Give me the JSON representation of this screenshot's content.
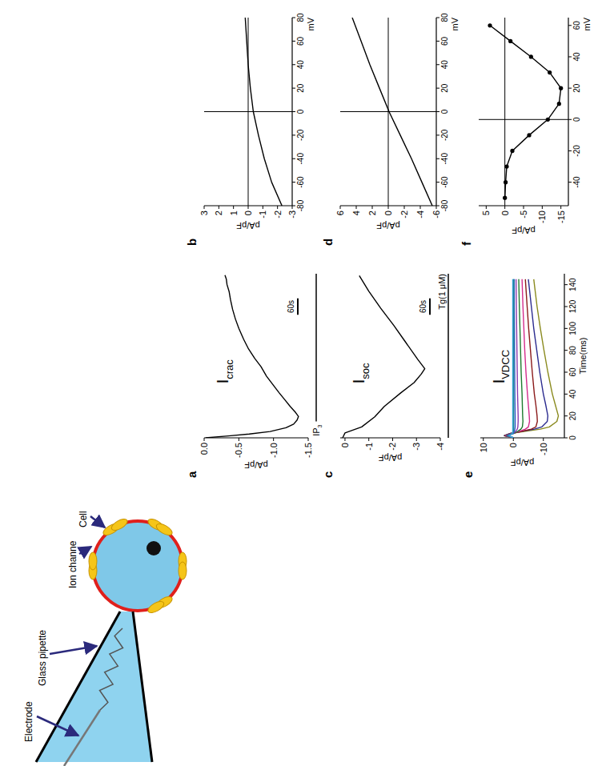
{
  "schematic": {
    "labels": [
      "Electrode",
      "Glass pipette",
      "Ion channe",
      "Cell"
    ]
  },
  "chart_data": [
    {
      "type": "line",
      "panel": "a",
      "title": {
        "main": "I",
        "sub": "crac"
      },
      "y_label": "pA/pF",
      "x": [
        0,
        7,
        14,
        23,
        37,
        50,
        65,
        78,
        92,
        115,
        140,
        165,
        195,
        225,
        260,
        290,
        325,
        360,
        400,
        435,
        470,
        505,
        535,
        560,
        580,
        595
      ],
      "values": [
        -0.02,
        -0.35,
        -0.65,
        -0.95,
        -1.18,
        -1.29,
        -1.34,
        -1.36,
        -1.32,
        -1.24,
        -1.16,
        -1.08,
        -0.99,
        -0.9,
        -0.82,
        -0.73,
        -0.64,
        -0.57,
        -0.5,
        -0.45,
        -0.41,
        -0.38,
        -0.36,
        -0.33,
        -0.32,
        -0.3
      ],
      "color": "#000000",
      "xlim": [
        0,
        600
      ],
      "ylim": [
        -1.5,
        0
      ],
      "yticks": [
        {
          "value": 0,
          "label": "0.0"
        },
        -0.5,
        {
          "value": -1,
          "label": "-1.0"
        },
        -1.5
      ],
      "tick_labels": "y",
      "stimulus": {
        "label": {
          "main": "IP",
          "sub": "3"
        },
        "start": 60,
        "end": 600
      },
      "scale_bar": {
        "value": 60,
        "label": "60s"
      }
    },
    {
      "type": "line",
      "panel": "b",
      "y_label": "pA/pF",
      "x_label": "mV",
      "x": [
        -80,
        -60,
        -40,
        -20,
        0,
        20,
        40,
        60,
        80
      ],
      "values": [
        -2.3,
        -1.6,
        -1.1,
        -0.7,
        -0.35,
        -0.15,
        0,
        0.1,
        0.2
      ],
      "color": "#000000",
      "xlim": [
        -80,
        80
      ],
      "ylim": [
        -3,
        3
      ],
      "xticks": [
        -80,
        -60,
        -40,
        -20,
        0,
        20,
        40,
        60,
        80
      ],
      "yticks": [
        -3,
        -2,
        -1,
        0,
        1,
        2,
        3
      ]
    },
    {
      "type": "line",
      "panel": "c",
      "title": {
        "main": "I",
        "sub": "soc"
      },
      "y_label": "pA/pF",
      "x": [
        0,
        9,
        18,
        40,
        77,
        115,
        165,
        202,
        233,
        253,
        287,
        349,
        411,
        474,
        536,
        593
      ],
      "values": [
        0.1,
        0.05,
        0,
        -0.7,
        -1.25,
        -1.65,
        -2.35,
        -2.9,
        -3.2,
        -3.35,
        -3.05,
        -2.55,
        -2.05,
        -1.5,
        -1,
        -0.6
      ],
      "color": "#000000",
      "xlim": [
        0,
        600
      ],
      "ylim": [
        -4,
        0.2
      ],
      "yticks": [
        0,
        -1,
        -2,
        -3,
        -4
      ],
      "tick_labels": "y",
      "stimulus": {
        "label": {
          "main": "Tg(1 μM)"
        },
        "start": 0,
        "end": 600
      },
      "scale_bar": {
        "value": 60,
        "label": "60s"
      }
    },
    {
      "type": "line",
      "panel": "d",
      "y_label": "pA/pF",
      "x_label": "mV",
      "x": [
        -80,
        -60,
        -40,
        -20,
        0,
        20,
        40,
        60,
        80
      ],
      "values": [
        -5.5,
        -4.2,
        -2.9,
        -1.5,
        -0.1,
        1.1,
        2.3,
        3.4,
        4.5
      ],
      "color": "#000000",
      "xlim": [
        -80,
        80
      ],
      "ylim": [
        -6,
        6
      ],
      "xticks": [
        -80,
        -60,
        -40,
        -20,
        0,
        20,
        40,
        60,
        80
      ],
      "yticks": [
        -6,
        -4,
        -2,
        0,
        2,
        4,
        6
      ]
    },
    {
      "type": "line",
      "panel": "e",
      "title": {
        "main": "I",
        "sub": "VDCC"
      },
      "y_label": "pA/pF",
      "x_label": "Time(ms)",
      "x": [
        0,
        2,
        4,
        6,
        8,
        10,
        15,
        20,
        30,
        40,
        60,
        80,
        100,
        120,
        145
      ],
      "series": [
        {
          "color": "#8a8a1e",
          "values": [
            0,
            3,
            1,
            -4,
            -9,
            -12,
            -14.5,
            -15,
            -14,
            -13,
            -11.5,
            -10.2,
            -9,
            -7.9,
            -6.8
          ]
        },
        {
          "color": "#2b2b8f",
          "values": [
            0,
            3,
            1,
            -3,
            -7,
            -9.5,
            -11.3,
            -11.5,
            -10.8,
            -10,
            -8.8,
            -7.8,
            -6.8,
            -6,
            -5
          ]
        },
        {
          "color": "#8b1a1a",
          "values": [
            0,
            2.8,
            0.5,
            -3,
            -6,
            -7.5,
            -8,
            -7.9,
            -7.5,
            -7,
            -6.3,
            -5.7,
            -5.1,
            -4.6,
            -4
          ]
        },
        {
          "color": "#d42c8c",
          "values": [
            0,
            2.6,
            0.3,
            -2,
            -4,
            -5,
            -5.4,
            -5.3,
            -5,
            -4.7,
            -4.2,
            -3.8,
            -3.5,
            -3.2,
            -2.9
          ]
        },
        {
          "color": "#1e7a2e",
          "values": [
            0,
            2.4,
            0,
            -1.5,
            -2.5,
            -3,
            -3.2,
            -3.1,
            -3,
            -2.9,
            -2.6,
            -2.4,
            -2.2,
            -2,
            -1.8
          ]
        },
        {
          "color": "#8a3ab0",
          "values": [
            0,
            2.2,
            0,
            -0.8,
            -1.3,
            -1.5,
            -1.6,
            -1.6,
            -1.5,
            -1.4,
            -1.3,
            -1.2,
            -1.1,
            -1,
            -0.9
          ]
        },
        {
          "color": "#2a52c8",
          "values": [
            0,
            2,
            0,
            -0.3,
            -0.5,
            -0.6,
            -0.6,
            -0.6,
            -0.55,
            -0.5,
            -0.45,
            -0.4,
            -0.35,
            -0.3,
            -0.3
          ]
        },
        {
          "color": "#1f8a8a",
          "values": [
            0,
            1.8,
            0.2,
            0,
            -0.1,
            -0.1,
            -0.1,
            -0.1,
            -0.1,
            -0.1,
            -0.1,
            -0.1,
            -0.1,
            -0.1,
            -0.1
          ]
        },
        {
          "color": "#3aa0d8",
          "values": [
            0,
            1.5,
            0.3,
            0.2,
            0.2,
            0.2,
            0.2,
            0.2,
            0.2,
            0.2,
            0.2,
            0.2,
            0.2,
            0.2,
            0.2
          ]
        }
      ],
      "xlim": [
        0,
        150
      ],
      "ylim": [
        -17,
        11
      ],
      "xticks": [
        0,
        20,
        40,
        60,
        80,
        100,
        120,
        140
      ],
      "yticks": [
        -10,
        0,
        10
      ]
    },
    {
      "type": "line",
      "panel": "f",
      "y_label": "pA/pF",
      "x_label": "mV",
      "marker": "circle",
      "x": [
        -50,
        -40,
        -30,
        -20,
        -10,
        0,
        10,
        20,
        30,
        40,
        50,
        60
      ],
      "values": [
        0,
        -0.2,
        -0.5,
        -2,
        -6.5,
        -11.5,
        -14.5,
        -15,
        -12,
        -7,
        -1.5,
        4
      ],
      "color": "#000000",
      "xlim": [
        -55,
        65
      ],
      "ylim": [
        -17,
        7
      ],
      "xticks": [
        -40,
        -20,
        0,
        20,
        40,
        60
      ],
      "yticks": [
        -15,
        -10,
        -5,
        0,
        5
      ]
    }
  ]
}
